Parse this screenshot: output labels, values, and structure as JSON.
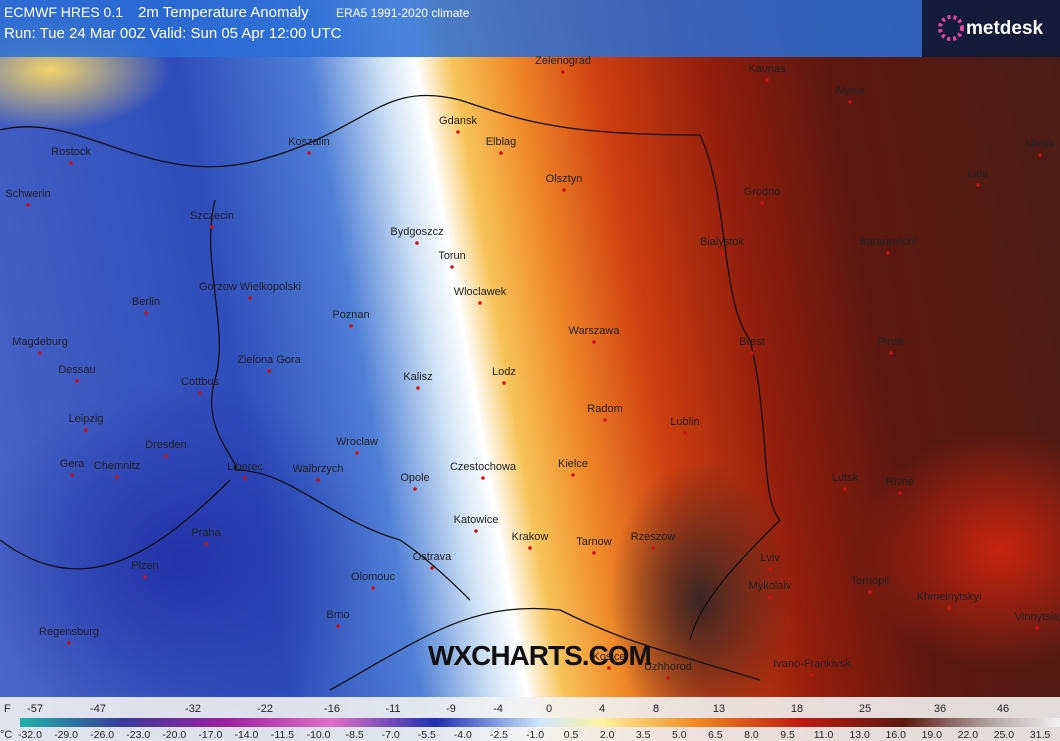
{
  "header": {
    "model": "ECMWF HRES 0.1",
    "title": "2m Temperature Anomaly",
    "climate": "ERA5 1991-2020 climate",
    "run": "Run: Tue 24 Mar 00Z Valid: Sun 05 Apr 12:00 UTC"
  },
  "logo": "metdesk",
  "watermark": "WXCHARTS.COM",
  "cities": [
    "Zelenograd",
    "Kaunas",
    "Alytus",
    "Gdansk",
    "Elblag",
    "Rostock",
    "Koszalin",
    "Olsztyn",
    "Schwerin",
    "Szczecin",
    "Grodno",
    "Lida",
    "Minsk",
    "Bydgoszcz",
    "Torun",
    "Bialystok",
    "Baranovichi",
    "Gorzow Wielkopolski",
    "Wloclawek",
    "Berlin",
    "Poznan",
    "Warszawa",
    "Magdeburg",
    "Brest",
    "Pinsk",
    "Dessau",
    "Zielona Gora",
    "Kalisz",
    "Lodz",
    "Cottbus",
    "Radom",
    "Lublin",
    "Leipzig",
    "Dresden",
    "Wroclaw",
    "Gera",
    "Chemnitz",
    "Liberec",
    "Walbrzych",
    "Opole",
    "Czestochowa",
    "Kielce",
    "Lutsk",
    "Rivne",
    "Katowice",
    "Krakow",
    "Tarnow",
    "Rzeszow",
    "Praha",
    "Ostrava",
    "Plzen",
    "Lviv",
    "Olomouc",
    "Mykolaiv",
    "Ternopil",
    "Khmelnytskyi",
    "Brno",
    "Vinnytsia",
    "Regensburg",
    "Kosice",
    "Uzhhorod",
    "Ivano-Frankivsk"
  ],
  "legend": {
    "f_unit": "F",
    "f_labels": [
      "-57",
      "-47",
      "-32",
      "-22",
      "-16",
      "-11",
      "-9",
      "-4",
      "0",
      "4",
      "8",
      "13",
      "18",
      "25",
      "36",
      "46"
    ],
    "c_unit": "°C",
    "c_labels": [
      "-32.0",
      "-29.0",
      "-26.0",
      "-23.0",
      "-20.0",
      "-17.0",
      "-14.0",
      "-11.5",
      "-10.0",
      "-8.5",
      "-7.0",
      "-5.5",
      "-4.0",
      "-2.5",
      "-1.0",
      "0.5",
      "2.0",
      "3.5",
      "5.0",
      "6.5",
      "8.0",
      "9.5",
      "11.0",
      "13.0",
      "16.0",
      "19.0",
      "22.0",
      "25.0",
      "31.5"
    ]
  }
}
